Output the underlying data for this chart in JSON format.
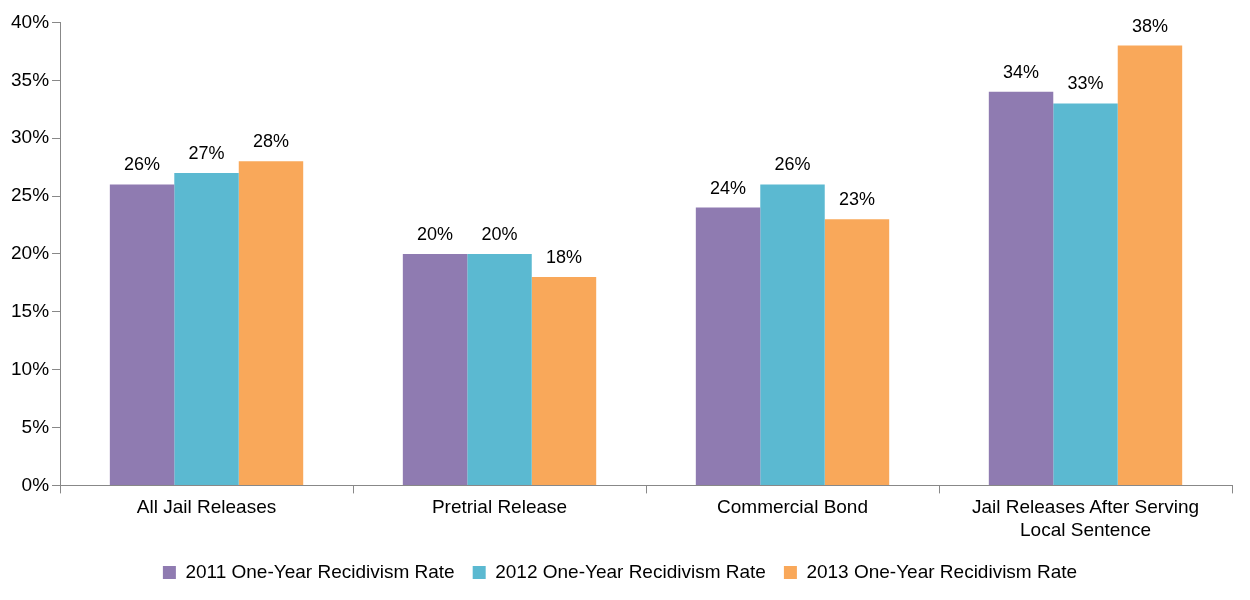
{
  "chart_data": {
    "type": "bar",
    "categories": [
      "All Jail Releases",
      "Pretrial Release",
      "Commercial Bond",
      "Jail Releases After Serving Local Sentence"
    ],
    "series": [
      {
        "name": "2011 One-Year Recidivism Rate",
        "color": "#8f7bb1",
        "values": [
          26,
          20,
          24,
          34
        ],
        "value_labels": [
          "26%",
          "20%",
          "24%",
          "34%"
        ]
      },
      {
        "name": "2012 One-Year Recidivism Rate",
        "color": "#5bb9d1",
        "values": [
          27,
          20,
          26,
          33
        ],
        "value_labels": [
          "27%",
          "20%",
          "26%",
          "33%"
        ]
      },
      {
        "name": "2013 One-Year Recidivism Rate",
        "color": "#f9a85a",
        "values": [
          28,
          18,
          23,
          38
        ],
        "value_labels": [
          "28%",
          "18%",
          "23%",
          "38%"
        ]
      }
    ],
    "ylim": [
      0,
      40
    ],
    "yticks": [
      {
        "value": 0,
        "label": "0%"
      },
      {
        "value": 5,
        "label": "5%"
      },
      {
        "value": 10,
        "label": "10%"
      },
      {
        "value": 15,
        "label": "15%"
      },
      {
        "value": 20,
        "label": "20%"
      },
      {
        "value": 25,
        "label": "25%"
      },
      {
        "value": 30,
        "label": "30%"
      },
      {
        "value": 35,
        "label": "35%"
      },
      {
        "value": 40,
        "label": "40%"
      }
    ],
    "grid": false,
    "legend": "bottom"
  }
}
